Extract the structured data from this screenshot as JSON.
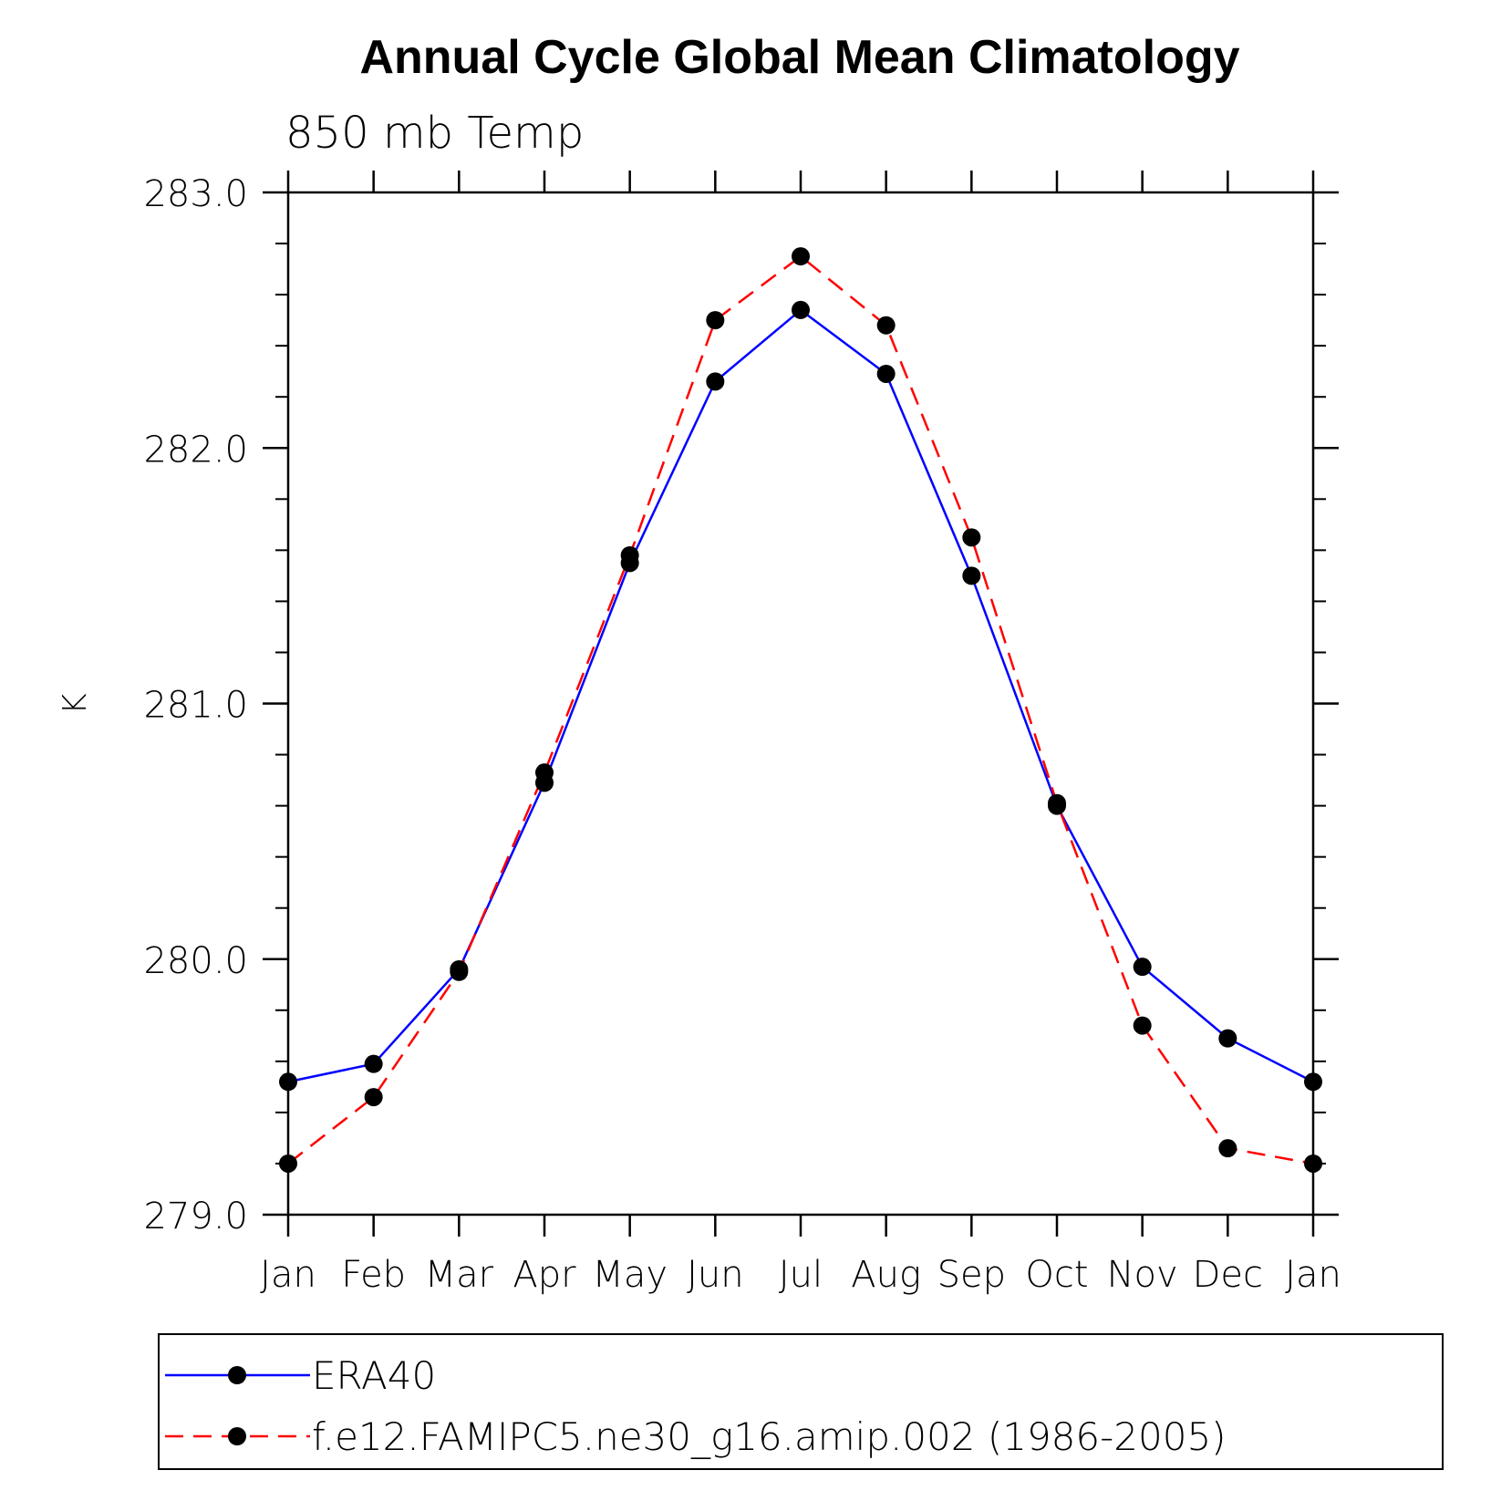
{
  "chart_data": {
    "type": "line",
    "title": "Annual Cycle Global Mean Climatology",
    "subtitle": "850 mb Temp",
    "ylabel": "K",
    "xlabel": "",
    "categories": [
      "Jan",
      "Feb",
      "Mar",
      "Apr",
      "May",
      "Jun",
      "Jul",
      "Aug",
      "Sep",
      "Oct",
      "Nov",
      "Dec",
      "Jan"
    ],
    "ylim": [
      279.0,
      283.0
    ],
    "yticks": [
      "279.0",
      "280.0",
      "281.0",
      "282.0",
      "283.0"
    ],
    "grid": false,
    "legend_position": "bottom",
    "series": [
      {
        "name": "ERA40",
        "color": "#0000ff",
        "line_style": "solid",
        "values": [
          279.52,
          279.59,
          279.96,
          280.69,
          281.55,
          282.26,
          282.54,
          282.29,
          281.5,
          280.6,
          279.97,
          279.69,
          279.52
        ]
      },
      {
        "name": "f.e12.FAMIPC5.ne30_g16.amip.002 (1986-2005)",
        "color": "#ff0000",
        "line_style": "dashed",
        "values": [
          279.2,
          279.46,
          279.95,
          280.73,
          281.58,
          282.5,
          282.75,
          282.48,
          281.65,
          280.61,
          279.74,
          279.26,
          279.2
        ]
      }
    ],
    "marker_color": "#000000"
  }
}
